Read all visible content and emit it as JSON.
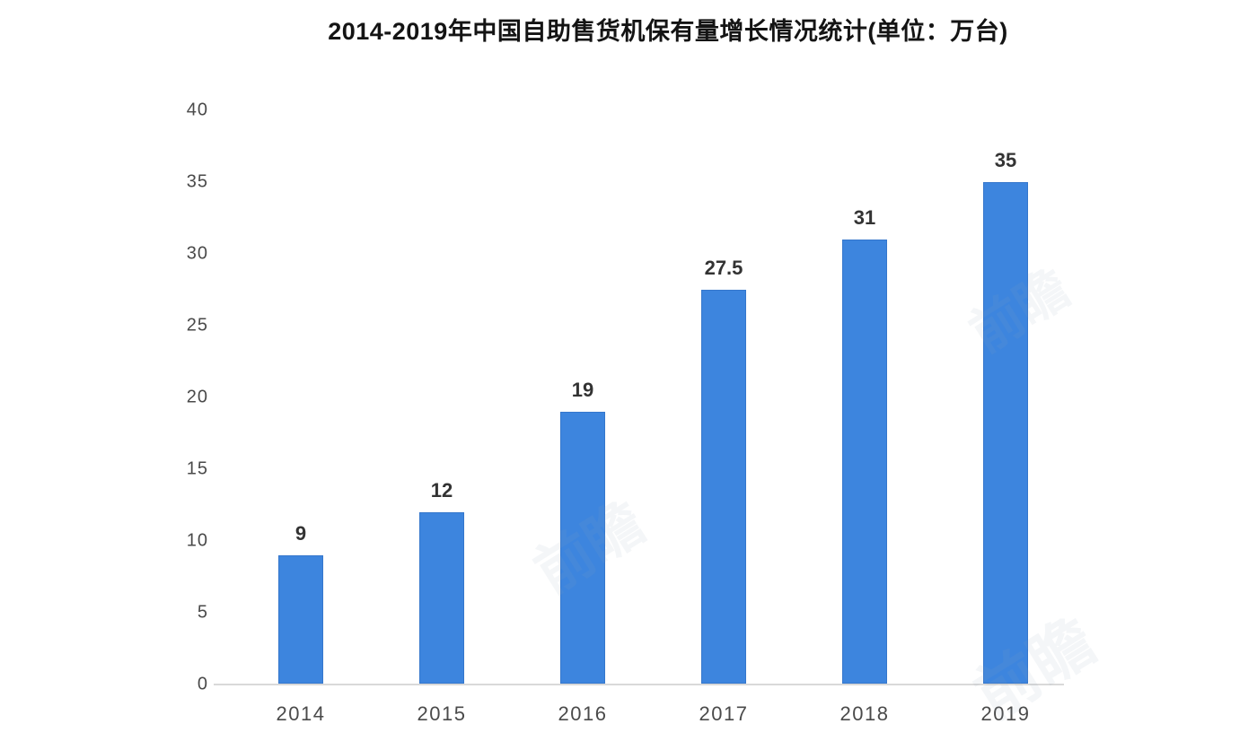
{
  "title": "2014-2019年中国自助售货机保有量增长情况统计(单位：万台)",
  "watermark_text": "前瞻",
  "chart_data": {
    "type": "bar",
    "title": "2014-2019年中国自助售货机保有量增长情况统计(单位：万台)",
    "categories": [
      "2014",
      "2015",
      "2016",
      "2017",
      "2018",
      "2019"
    ],
    "values": [
      9,
      12,
      19,
      27.5,
      31,
      35
    ],
    "value_labels": [
      "9",
      "12",
      "19",
      "27.5",
      "31",
      "35"
    ],
    "xlabel": "",
    "ylabel": "",
    "ylim": [
      0,
      40
    ],
    "yticks": [
      0,
      5,
      10,
      15,
      20,
      25,
      30,
      35,
      40
    ],
    "grid": false,
    "legend": null,
    "bar_color": "#3d85de",
    "axis_line_color": "#d9d9d9",
    "title_color": "#141414",
    "tick_label_color": "#4a4a4a",
    "value_label_color": "#333333"
  }
}
